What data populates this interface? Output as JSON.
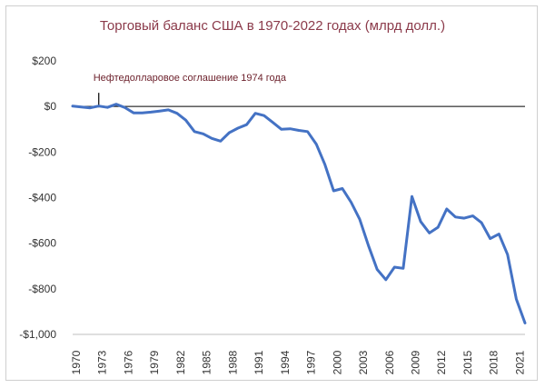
{
  "title": "Торговый баланс США в 1970-2022 годах (млрд долл.)",
  "annotation": "Нефтедолларовое соглашение 1974 года",
  "colors": {
    "line": "#4472c4",
    "title": "#8b3a4a",
    "annotation": "#6b1f2a",
    "axis": "#000000"
  },
  "chart_data": {
    "type": "line",
    "title": "Торговый баланс США в 1970-2022 годах (млрд долл.)",
    "xlabel": "",
    "ylabel": "",
    "xlim": [
      1970,
      2022
    ],
    "ylim": [
      -1000,
      200
    ],
    "y_ticks": [
      200,
      0,
      -200,
      -400,
      -600,
      -800,
      -1000
    ],
    "y_tick_labels": [
      "$200",
      "$0",
      "-$200",
      "-$400",
      "-$600",
      "-$800",
      "-$1,000"
    ],
    "x_ticks": [
      1970,
      1973,
      1976,
      1979,
      1982,
      1985,
      1988,
      1991,
      1994,
      1997,
      2000,
      2003,
      2006,
      2009,
      2012,
      2015,
      2018,
      2021
    ],
    "grid": false,
    "annotation_x": 1973,
    "series": [
      {
        "x": [
          1970,
          1971,
          1972,
          1973,
          1974,
          1975,
          1976,
          1977,
          1978,
          1979,
          1980,
          1981,
          1982,
          1983,
          1984,
          1985,
          1986,
          1987,
          1988,
          1989,
          1990,
          1991,
          1992,
          1993,
          1994,
          1995,
          1996,
          1997,
          1998,
          1999,
          2000,
          2001,
          2002,
          2003,
          2004,
          2005,
          2006,
          2007,
          2008,
          2009,
          2010,
          2011,
          2012,
          2013,
          2014,
          2015,
          2016,
          2017,
          2018,
          2019,
          2020,
          2021,
          2022
        ],
        "values": [
          2,
          -2,
          -6,
          2,
          -4,
          10,
          -5,
          -28,
          -28,
          -25,
          -20,
          -15,
          -30,
          -60,
          -110,
          -120,
          -140,
          -152,
          -115,
          -95,
          -80,
          -30,
          -40,
          -70,
          -100,
          -98,
          -105,
          -110,
          -165,
          -255,
          -370,
          -360,
          -420,
          -495,
          -610,
          -715,
          -760,
          -705,
          -710,
          -395,
          -505,
          -555,
          -530,
          -450,
          -485,
          -490,
          -480,
          -510,
          -580,
          -560,
          -650,
          -845,
          -950
        ]
      }
    ]
  }
}
